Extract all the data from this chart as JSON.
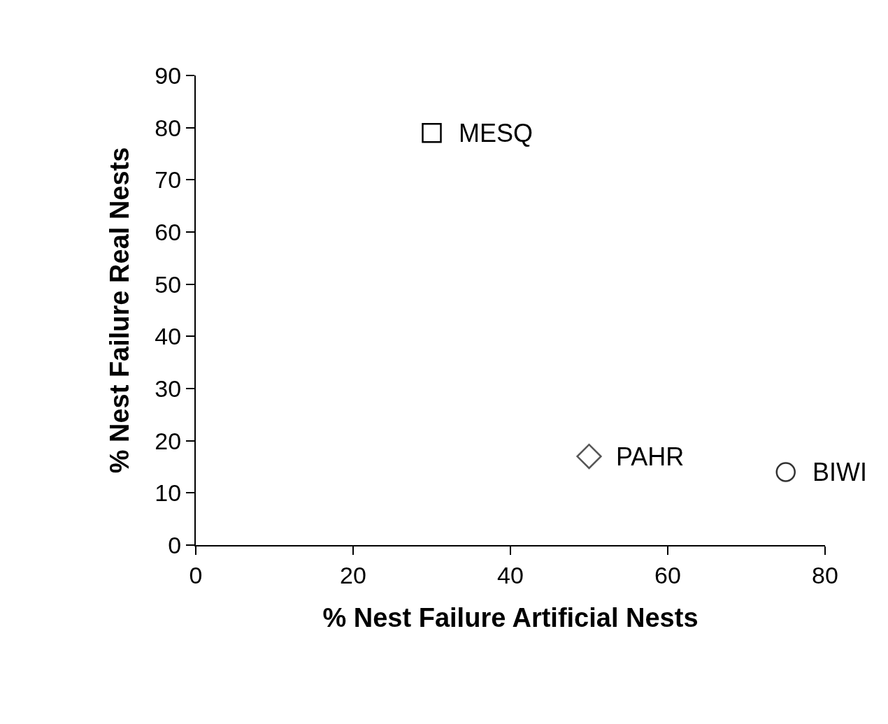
{
  "chart_data": {
    "type": "scatter",
    "xlabel": "% Nest Failure Artificial Nests",
    "ylabel": "% Nest Failure Real Nests",
    "xlim": [
      0,
      80
    ],
    "xticks": [
      0,
      20,
      40,
      60,
      80
    ],
    "ylim": [
      0,
      90
    ],
    "yticks": [
      0,
      10,
      20,
      30,
      40,
      50,
      60,
      70,
      80,
      90
    ],
    "grid": false,
    "legend": false,
    "series": [
      {
        "name": "MESQ",
        "x": [
          30
        ],
        "values": [
          79
        ],
        "marker": "square",
        "color": "#000000"
      },
      {
        "name": "PAHR",
        "x": [
          50
        ],
        "values": [
          17
        ],
        "marker": "diamond",
        "color": "#555555"
      },
      {
        "name": "BIWI",
        "x": [
          75
        ],
        "values": [
          14
        ],
        "marker": "circle",
        "color": "#333333"
      }
    ]
  }
}
